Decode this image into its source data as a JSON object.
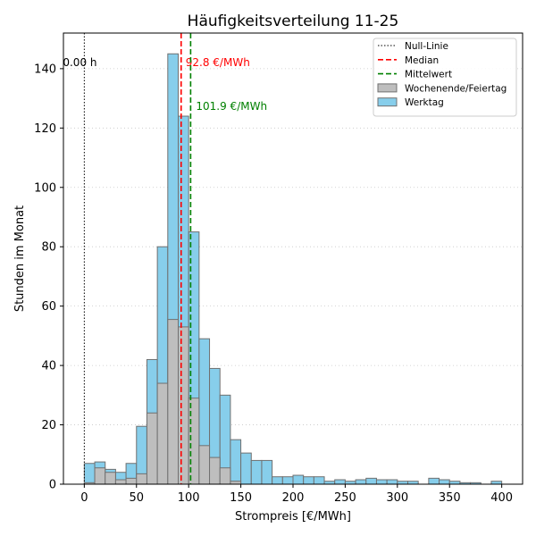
{
  "chart_data": {
    "type": "bar",
    "title": "Häufigkeitsverteilung 11-25",
    "xlabel": "Strompreis [€/MWh]",
    "ylabel": "Stunden im Monat",
    "xlim": [
      -20,
      420
    ],
    "ylim": [
      0,
      152
    ],
    "xticks": [
      0,
      50,
      100,
      150,
      200,
      250,
      300,
      350,
      400
    ],
    "yticks": [
      0,
      20,
      40,
      60,
      80,
      100,
      120,
      140
    ],
    "bin_width": 10,
    "bin_starts": [
      0,
      10,
      20,
      30,
      40,
      50,
      60,
      70,
      80,
      90,
      100,
      110,
      120,
      130,
      140,
      150,
      160,
      170,
      180,
      190,
      200,
      210,
      220,
      230,
      240,
      250,
      260,
      270,
      280,
      290,
      300,
      310,
      320,
      330,
      340,
      350,
      360,
      370,
      380,
      390
    ],
    "grid": "horizontal-dotted",
    "legend_position": "top-right",
    "series": [
      {
        "name": "Werktag",
        "color": "#87ceeb",
        "values": [
          7,
          7.5,
          5,
          4,
          7,
          19.5,
          42,
          80,
          145,
          124,
          85,
          49,
          39,
          30,
          15,
          10.5,
          8,
          8,
          2.5,
          2.5,
          3,
          2.5,
          2.5,
          1,
          1.5,
          1,
          1.5,
          2,
          1.5,
          1.5,
          1,
          1,
          0,
          2,
          1.5,
          1,
          0.5,
          0.5,
          0,
          1
        ]
      },
      {
        "name": "Wochenende/Feiertag",
        "color": "#bebebe",
        "values": [
          0.5,
          5.5,
          4,
          1.5,
          2,
          3.5,
          24,
          34,
          55.5,
          53,
          29,
          13,
          9,
          5.5,
          1,
          0,
          0,
          0,
          0,
          0,
          0,
          0,
          0,
          0,
          0,
          0,
          0,
          0,
          0,
          0,
          0,
          0,
          0,
          0,
          0,
          0,
          0,
          0,
          0,
          0
        ]
      }
    ],
    "reference_lines": [
      {
        "name": "Null-Linie",
        "x": 0,
        "color": "#000000",
        "style": "dotted",
        "label": "0.00 h"
      },
      {
        "name": "Median",
        "x": 92.8,
        "color": "#ff0000",
        "style": "dashed",
        "label": "92.8 €/MWh"
      },
      {
        "name": "Mittelwert",
        "x": 101.9,
        "color": "#008000",
        "style": "dashed",
        "label": "101.9 €/MWh"
      }
    ],
    "legend": [
      {
        "label": "Null-Linie",
        "kind": "line",
        "color": "#000000",
        "dash": "1.5,2"
      },
      {
        "label": "Median",
        "kind": "line",
        "color": "#ff0000",
        "dash": "6,3"
      },
      {
        "label": "Mittelwert",
        "kind": "line",
        "color": "#008000",
        "dash": "6,3"
      },
      {
        "label": "Wochenende/Feiertag",
        "kind": "patch",
        "color": "#bebebe"
      },
      {
        "label": "Werktag",
        "kind": "patch",
        "color": "#87ceeb"
      }
    ]
  }
}
